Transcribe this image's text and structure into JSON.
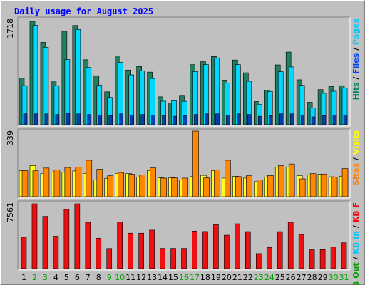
{
  "chart_data": {
    "type": "bar",
    "title": "Daily usage for August 2025",
    "categories": [
      "1",
      "2",
      "3",
      "4",
      "5",
      "6",
      "7",
      "8",
      "9",
      "10",
      "11",
      "12",
      "13",
      "14",
      "15",
      "16",
      "17",
      "18",
      "19",
      "20",
      "21",
      "22",
      "23",
      "24",
      "25",
      "26",
      "27",
      "28",
      "29",
      "30",
      "31"
    ],
    "weekend_days": [
      "2",
      "3",
      "9",
      "10",
      "16",
      "17",
      "23",
      "24",
      "30",
      "31"
    ],
    "panels": [
      {
        "id": "hits-files-pages",
        "max_label": "1718",
        "ylim": [
          0,
          1718
        ],
        "legend": [
          {
            "label": "Pages",
            "color": "#00c8ff"
          },
          {
            "label": "Files",
            "color": "#0040ff"
          },
          {
            "label": "Hits",
            "color": "#008060"
          }
        ],
        "series": [
          {
            "name": "Hits",
            "color": "#208060",
            "values": [
              772,
              1718,
              1369,
              726,
              1553,
              1650,
              1080,
              815,
              547,
              1141,
              908,
              967,
              875,
              463,
              361,
              477,
              999,
              1048,
              1134,
              741,
              1076,
              864,
              385,
              572,
              995,
              1208,
              747,
              373,
              584,
              635,
              649
            ]
          },
          {
            "name": "Files",
            "color": "#00d8ff",
            "values": [
              650,
              1653,
              1288,
              649,
              1084,
              1583,
              953,
              656,
              453,
              1036,
              829,
              894,
              768,
              392,
              399,
              389,
              885,
              999,
              1111,
              692,
              999,
              722,
              340,
              554,
              882,
              960,
              655,
              276,
              522,
              557,
              612
            ]
          },
          {
            "name": "Pages",
            "color": "#0040b0",
            "values": [
              180,
              180,
              180,
              170,
              190,
              180,
              170,
              160,
              150,
              180,
              160,
              170,
              160,
              150,
              140,
              150,
              170,
              180,
              180,
              160,
              180,
              170,
              140,
              150,
              180,
              180,
              160,
              130,
              150,
              160,
              160
            ]
          }
        ]
      },
      {
        "id": "visits-sites",
        "max_label": "339",
        "ylim": [
          0,
          339
        ],
        "legend": [
          {
            "label": "Visits",
            "color": "#ffff00"
          },
          {
            "label": "Sites",
            "color": "#ff8000"
          }
        ],
        "series": [
          {
            "name": "Visits",
            "color": "#ffff20",
            "values": [
              134,
              161,
              119,
              126,
              126,
              133,
              120,
              86,
              95,
              120,
              119,
              102,
              135,
              98,
              98,
              86,
              104,
              110,
              134,
              96,
              105,
              96,
              78,
              102,
              152,
              154,
              109,
              113,
              116,
              103,
              106
            ]
          },
          {
            "name": "Sites",
            "color": "#ff8800",
            "values": [
              134,
              134,
              148,
              139,
              151,
              153,
              188,
              142,
              108,
              125,
              116,
              113,
              149,
              96,
              97,
              96,
              339,
              97,
              138,
              188,
              104,
              108,
              87,
              109,
              160,
              169,
              92,
              119,
              117,
              102,
              145
            ]
          }
        ]
      },
      {
        "id": "kb-in-out-f",
        "max_label": "7561",
        "ylim": [
          0,
          7561
        ],
        "legend": [
          {
            "label": "KB F",
            "color": "#ff0000"
          },
          {
            "label": "KB In",
            "color": "#00c8ff"
          },
          {
            "label": "KB Out",
            "color": "#00a000"
          }
        ],
        "series": [
          {
            "name": "KB F",
            "color": "#ee1010",
            "values": [
              3665,
              7561,
              6097,
              3782,
              6898,
              7561,
              5396,
              3550,
              2344,
              5408,
              4136,
              4136,
              4490,
              2357,
              2357,
              2357,
              4379,
              4329,
              5117,
              3900,
              5231,
              4319,
              1757,
              2471,
              4315,
              5409,
              3982,
              2202,
              2220,
              2512,
              3014
            ]
          }
        ]
      }
    ]
  }
}
